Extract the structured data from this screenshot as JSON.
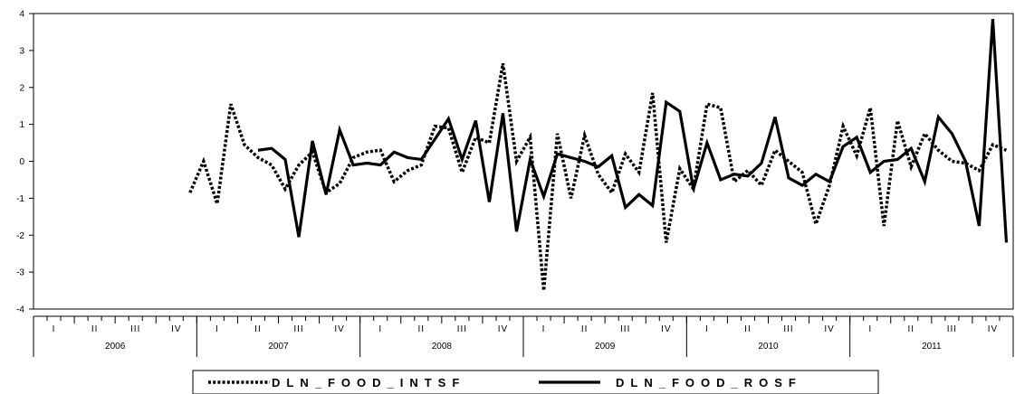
{
  "chart_data": {
    "type": "line",
    "title": "",
    "xlabel": "",
    "ylabel": "",
    "ylim": [
      -4,
      4
    ],
    "yticks": [
      -4,
      -3,
      -2,
      -1,
      0,
      1,
      2,
      3,
      4
    ],
    "x_start": "2006M01",
    "x_end": "2011M12",
    "years": [
      "2006",
      "2007",
      "2008",
      "2009",
      "2010",
      "2011"
    ],
    "quarter_labels": [
      "I",
      "II",
      "III",
      "IV"
    ],
    "grid": false,
    "legend_position": "bottom",
    "series": [
      {
        "name": "DLN_FOOD_INTSF",
        "style": "dotted",
        "color": "#000000",
        "values": [
          null,
          null,
          null,
          null,
          null,
          null,
          null,
          null,
          null,
          null,
          null,
          -0.85,
          0.0,
          -1.15,
          1.55,
          0.45,
          0.1,
          -0.1,
          -0.75,
          -0.1,
          0.25,
          -0.85,
          -0.6,
          0.1,
          0.25,
          0.3,
          -0.55,
          -0.25,
          -0.1,
          0.95,
          0.9,
          -0.3,
          0.65,
          0.5,
          2.65,
          0.0,
          0.65,
          -3.5,
          0.75,
          -1.0,
          0.7,
          -0.35,
          -0.85,
          0.2,
          -0.3,
          1.85,
          -2.2,
          -0.2,
          -0.75,
          1.55,
          1.45,
          -0.55,
          -0.25,
          -0.65,
          0.3,
          0.0,
          -0.3,
          -1.7,
          -0.65,
          0.95,
          0.15,
          1.45,
          -1.75,
          1.1,
          -0.15,
          0.75,
          0.3,
          0.0,
          -0.05,
          -0.25,
          0.45,
          0.3
        ]
      },
      {
        "name": "DLN_FOOD_ROSF",
        "style": "solid",
        "color": "#000000",
        "values": [
          null,
          null,
          null,
          null,
          null,
          null,
          null,
          null,
          null,
          null,
          null,
          null,
          null,
          null,
          null,
          null,
          0.3,
          0.35,
          0.05,
          -2.05,
          0.55,
          -0.9,
          0.85,
          -0.1,
          -0.05,
          -0.1,
          0.25,
          0.1,
          0.05,
          0.6,
          1.15,
          0.05,
          1.1,
          -1.1,
          1.3,
          -1.9,
          0.05,
          -0.95,
          0.2,
          0.1,
          0.0,
          -0.15,
          0.15,
          -1.25,
          -0.9,
          -1.2,
          1.6,
          1.35,
          -0.75,
          0.5,
          -0.5,
          -0.35,
          -0.4,
          -0.05,
          1.2,
          -0.45,
          -0.65,
          -0.35,
          -0.55,
          0.4,
          0.65,
          -0.3,
          0.0,
          0.05,
          0.35,
          -0.55,
          1.2,
          0.75,
          0.0,
          -1.75,
          3.85,
          -2.2
        ]
      }
    ]
  }
}
